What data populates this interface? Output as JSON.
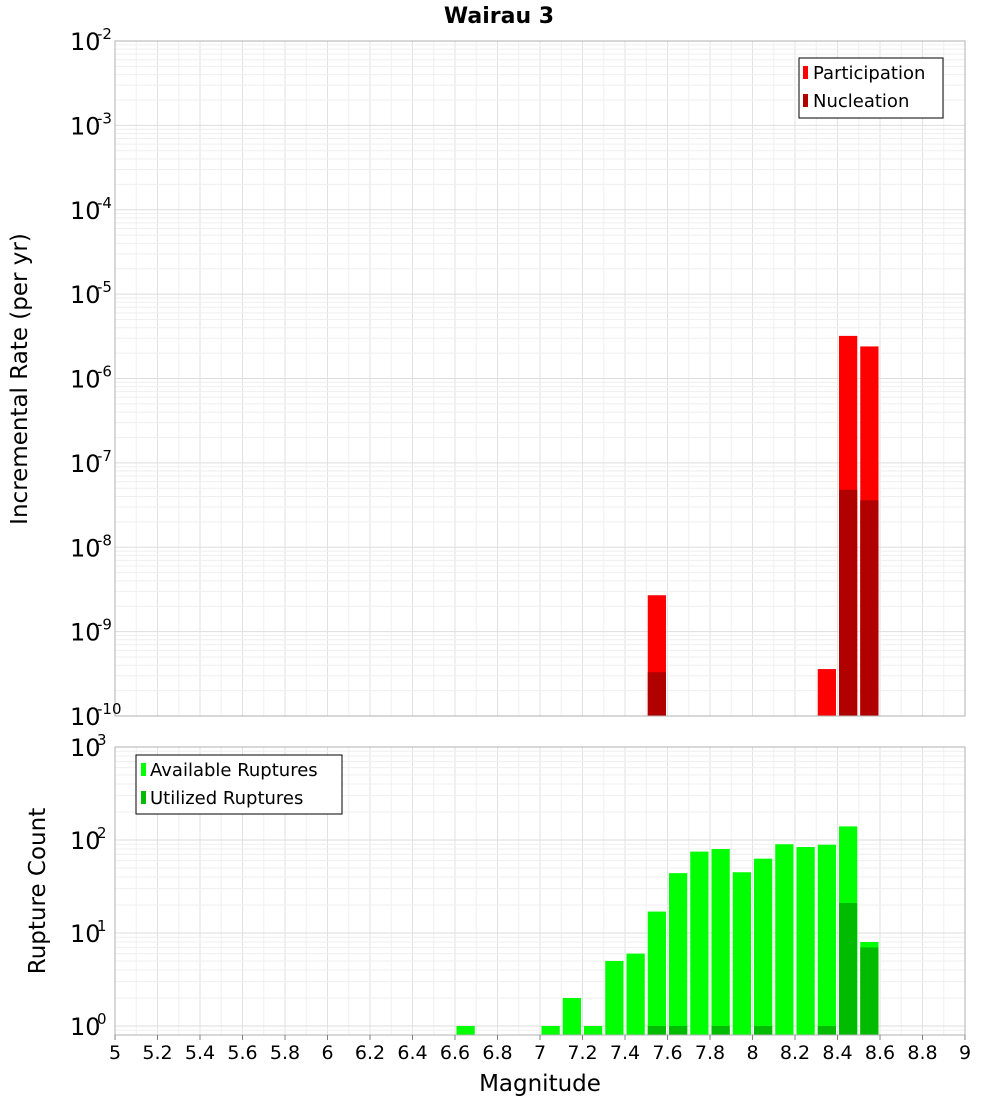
{
  "chart_data": [
    {
      "type": "bar",
      "title": "Wairau 3",
      "xlabel": "",
      "ylabel": "Incremental Rate (per yr)",
      "yscale": "log",
      "xlim": [
        5,
        9
      ],
      "ylim": [
        1e-10,
        0.01
      ],
      "ytick_exponents": [
        -10,
        -9,
        -8,
        -7,
        -6,
        -5,
        -4,
        -3,
        -2
      ],
      "ytick_base": "10",
      "grid": true,
      "legend_position": "top-right",
      "bin_width": 0.1,
      "series": [
        {
          "name": "Participation",
          "color": "#ff0000",
          "x": [
            7.55,
            8.35,
            8.45,
            8.55
          ],
          "values": [
            2.7e-09,
            3.6e-10,
            3.2e-06,
            2.4e-06
          ]
        },
        {
          "name": "Nucleation",
          "color": "#b00000",
          "x": [
            7.55,
            8.35,
            8.45,
            8.55
          ],
          "values": [
            3.3e-10,
            1e-10,
            4.8e-08,
            3.6e-08
          ]
        }
      ]
    },
    {
      "type": "bar",
      "title": "",
      "xlabel": "Magnitude",
      "ylabel": "Rupture Count",
      "yscale": "log",
      "xlim": [
        5,
        9
      ],
      "ylim": [
        0.8,
        1000
      ],
      "ytick_exponents": [
        0,
        1,
        2,
        3
      ],
      "ytick_base": "10",
      "xticks": [
        "5",
        "5.2",
        "5.4",
        "5.6",
        "5.8",
        "6",
        "6.2",
        "6.4",
        "6.6",
        "6.8",
        "7",
        "7.2",
        "7.4",
        "7.6",
        "7.8",
        "8",
        "8.2",
        "8.4",
        "8.6",
        "8.8",
        "9"
      ],
      "grid": true,
      "legend_position": "top-left",
      "bin_width": 0.1,
      "series": [
        {
          "name": "Available Ruptures",
          "color": "#00ff00",
          "x": [
            6.65,
            7.05,
            7.15,
            7.25,
            7.35,
            7.45,
            7.55,
            7.65,
            7.75,
            7.85,
            7.95,
            8.05,
            8.15,
            8.25,
            8.35,
            8.45,
            8.55
          ],
          "values": [
            1,
            1,
            2,
            1,
            5,
            6,
            17,
            44,
            75,
            80,
            45,
            63,
            90,
            84,
            89,
            140,
            8
          ]
        },
        {
          "name": "Utilized Ruptures",
          "color": "#00bb00",
          "x": [
            7.55,
            7.65,
            7.85,
            8.05,
            8.35,
            8.45,
            8.55
          ],
          "values": [
            1,
            1,
            1,
            1,
            1,
            21,
            7
          ]
        }
      ]
    }
  ]
}
